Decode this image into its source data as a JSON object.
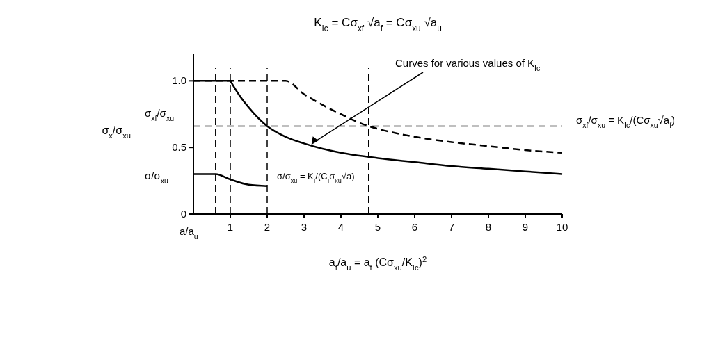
{
  "chart_data": {
    "type": "line",
    "title": "K$_{Ic}$ = Cσ$_{xf}$ √a$_{f}$ = Cσ$_{xu}$ √a$_{u}$",
    "xlabel": "a$_{f}$/a$_{u}$ = a$_{f}$ (Cσ$_{xu}$/K$_{Ic}$)$^{2}$",
    "ylabel": "σ$_{x}$/σ$_{xu}$",
    "xlim": [
      0,
      10
    ],
    "xticks": [
      1,
      2,
      3,
      4,
      5,
      6,
      7,
      8,
      9,
      10
    ],
    "ylim": [
      0,
      1.2
    ],
    "yticks": [
      0,
      0.5,
      {
        "value": 1,
        "label": "1.0"
      }
    ],
    "grid": false,
    "series": [
      {
        "color": "#000000",
        "line_style": "solid",
        "x": [
          1,
          1.25,
          1.5,
          2,
          2.5,
          3,
          3.5,
          4,
          5,
          6,
          7,
          8,
          9,
          10
        ],
        "values": [
          1,
          0.89,
          0.8,
          0.66,
          0.58,
          0.53,
          0.49,
          0.46,
          0.42,
          0.39,
          0.36,
          0.34,
          0.32,
          0.3
        ]
      },
      {
        "color": "#000000",
        "line_style": "dashed",
        "x": [
          0,
          2.5,
          3,
          3.5,
          4,
          4.75,
          5,
          6,
          7,
          8,
          9,
          10
        ],
        "values": [
          1,
          1,
          0.9,
          0.82,
          0.75,
          0.66,
          0.64,
          0.58,
          0.54,
          0.51,
          0.48,
          0.46
        ]
      },
      {
        "color": "#000000",
        "line_style": "solid",
        "x": [
          0,
          1
        ],
        "values": [
          1,
          1
        ]
      },
      {
        "color": "#000000",
        "line_style": "solid",
        "x": [
          0,
          0.6,
          1,
          1.5,
          2
        ],
        "values": [
          0.3,
          0.3,
          0.26,
          0.22,
          0.21
        ]
      }
    ],
    "ref_lines": [
      {
        "axis": "x",
        "value": 0.6,
        "color": "#000000",
        "line_style": "dashed"
      },
      {
        "axis": "x",
        "value": 1,
        "color": "#000000",
        "line_style": "dashed"
      },
      {
        "axis": "x",
        "value": 2,
        "color": "#000000",
        "line_style": "dashed"
      },
      {
        "axis": "x",
        "value": 4.75,
        "color": "#000000",
        "line_style": "dashed"
      },
      {
        "axis": "y",
        "value": 0.66,
        "color": "#000000",
        "line_style": "dashed"
      }
    ],
    "annotations": [
      {
        "text": "Curves for various values of K$_{Ic}$",
        "x": 3.2,
        "y": 0.52
      },
      "σ$_{xf}$/σ$_{xu}$ = K$_{Ic}$/(Cσ$_{xu}$√a$_{f}$)",
      "σ/σ$_{xu}$ = K$_{I}$/(C$_{I}$σ$_{xu}$√a)",
      "σ$_{xf}$/σ$_{xu}$",
      "σ/σ$_{xu}$",
      "a/a$_{u}$"
    ]
  }
}
